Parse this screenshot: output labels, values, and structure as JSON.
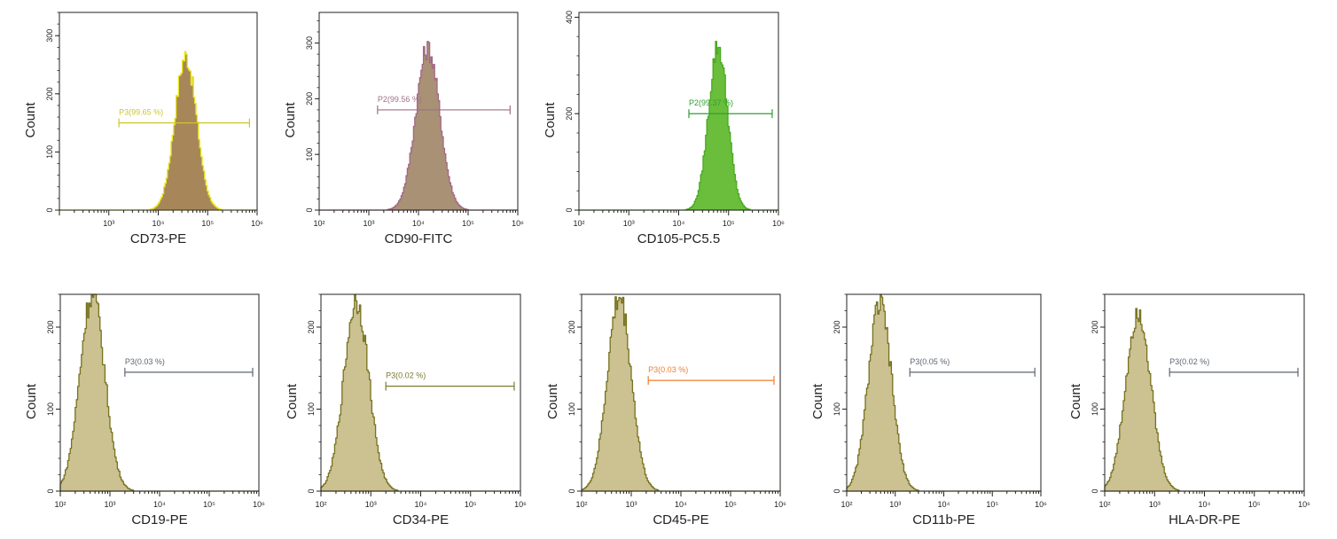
{
  "chart_data": [
    {
      "type": "histogram",
      "xlabel": "CD73-PE",
      "ylabel": "Count",
      "x_scale": "log",
      "xlim": [
        100,
        1000000
      ],
      "x_ticks": [
        "10³",
        "10⁴",
        "10⁵",
        "10⁶"
      ],
      "ylim": [
        0,
        340
      ],
      "y_ticks": [
        0,
        100,
        200,
        300
      ],
      "fill_color": "#a7865a",
      "outline_color": "#e7e619",
      "peak": {
        "mode": 35000,
        "height": 265,
        "spread": 0.22
      },
      "gate": {
        "label": "P3(99.65 %)",
        "x_start": 1600,
        "x_end": 700000,
        "y": 150,
        "color": "#cfc42d"
      }
    },
    {
      "type": "histogram",
      "xlabel": "CD90-FITC",
      "ylabel": "Count",
      "x_scale": "log",
      "xlim": [
        100,
        1000000
      ],
      "x_ticks": [
        "10²",
        "10³",
        "10⁴",
        "10⁵",
        "10⁶"
      ],
      "ylim": [
        0,
        355
      ],
      "y_ticks": [
        0,
        100,
        200,
        300
      ],
      "fill_color": "#a99175",
      "outline_color": "#a26785",
      "peak": {
        "mode": 15000,
        "height": 290,
        "spread": 0.24
      },
      "gate": {
        "label": "P2(99.56 %)",
        "x_start": 1500,
        "x_end": 700000,
        "y": 180,
        "color": "#9d7186"
      }
    },
    {
      "type": "histogram",
      "xlabel": "CD105-PC5.5",
      "ylabel": "Count",
      "x_scale": "log",
      "xlim": [
        100,
        1000000
      ],
      "x_ticks": [
        "10²",
        "10³",
        "10⁴",
        "10⁵",
        "10⁶"
      ],
      "ylim": [
        0,
        410
      ],
      "y_ticks": [
        0,
        200,
        400
      ],
      "fill_color": "#6abe3c",
      "outline_color": "#49a91f",
      "peak": {
        "mode": 60000,
        "height": 340,
        "spread": 0.19
      },
      "gate": {
        "label": "P2(99.37 %)",
        "x_start": 16000,
        "x_end": 750000,
        "y": 200,
        "color": "#2f9e2f"
      }
    },
    {
      "type": "histogram",
      "xlabel": "CD19-PE",
      "ylabel": "Count",
      "x_scale": "log",
      "xlim": [
        100,
        1000000
      ],
      "x_ticks": [
        "10²",
        "10³",
        "10⁴",
        "10⁵",
        "10⁶"
      ],
      "ylim": [
        0,
        240
      ],
      "y_ticks": [
        0,
        100,
        200
      ],
      "fill_color": "#cbc191",
      "outline_color": "#76721e",
      "peak": {
        "mode": 430,
        "height": 240,
        "spread": 0.25
      },
      "gate": {
        "label": "P3(0.03 %)",
        "x_start": 2000,
        "x_end": 750000,
        "y": 145,
        "color": "#5e6671"
      }
    },
    {
      "type": "histogram",
      "xlabel": "CD34-PE",
      "ylabel": "Count",
      "x_scale": "log",
      "xlim": [
        100,
        1000000
      ],
      "x_ticks": [
        "10²",
        "10³",
        "10⁴",
        "10⁵",
        "10⁶"
      ],
      "ylim": [
        0,
        240
      ],
      "y_ticks": [
        0,
        100,
        200
      ],
      "fill_color": "#cbc191",
      "outline_color": "#76721e",
      "peak": {
        "mode": 500,
        "height": 232,
        "spread": 0.25
      },
      "gate": {
        "label": "P3(0.02 %)",
        "x_start": 2000,
        "x_end": 750000,
        "y": 128,
        "color": "#7a7b2e"
      }
    },
    {
      "type": "histogram",
      "xlabel": "CD45-PE",
      "ylabel": "Count",
      "x_scale": "log",
      "xlim": [
        100,
        1000000
      ],
      "x_ticks": [
        "10²",
        "10³",
        "10⁴",
        "10⁵",
        "10⁶"
      ],
      "ylim": [
        0,
        240
      ],
      "y_ticks": [
        0,
        100,
        200
      ],
      "fill_color": "#cbc191",
      "outline_color": "#76721e",
      "peak": {
        "mode": 560,
        "height": 236,
        "spread": 0.24
      },
      "gate": {
        "label": "P3(0.03 %)",
        "x_start": 2200,
        "x_end": 750000,
        "y": 135,
        "color": "#ef7e2e"
      }
    },
    {
      "type": "histogram",
      "xlabel": "CD11b-PE",
      "ylabel": "Count",
      "x_scale": "log",
      "xlim": [
        100,
        1000000
      ],
      "x_ticks": [
        "10²",
        "10³",
        "10⁴",
        "10⁵",
        "10⁶"
      ],
      "ylim": [
        0,
        240
      ],
      "y_ticks": [
        0,
        100,
        200
      ],
      "fill_color": "#cbc191",
      "outline_color": "#76721e",
      "peak": {
        "mode": 470,
        "height": 228,
        "spread": 0.24
      },
      "gate": {
        "label": "P3(0.05 %)",
        "x_start": 2000,
        "x_end": 750000,
        "y": 145,
        "color": "#5e6671"
      }
    },
    {
      "type": "histogram",
      "xlabel": "HLA-DR-PE",
      "ylabel": "Count",
      "x_scale": "log",
      "xlim": [
        100,
        1000000
      ],
      "x_ticks": [
        "10²",
        "10³",
        "10⁴",
        "10⁵",
        "10⁶"
      ],
      "ylim": [
        0,
        240
      ],
      "y_ticks": [
        0,
        100,
        200
      ],
      "fill_color": "#cbc191",
      "outline_color": "#76721e",
      "peak": {
        "mode": 460,
        "height": 220,
        "spread": 0.25
      },
      "gate": {
        "label": "P3(0.02 %)",
        "x_start": 2000,
        "x_end": 750000,
        "y": 145,
        "color": "#5e6671"
      }
    }
  ]
}
